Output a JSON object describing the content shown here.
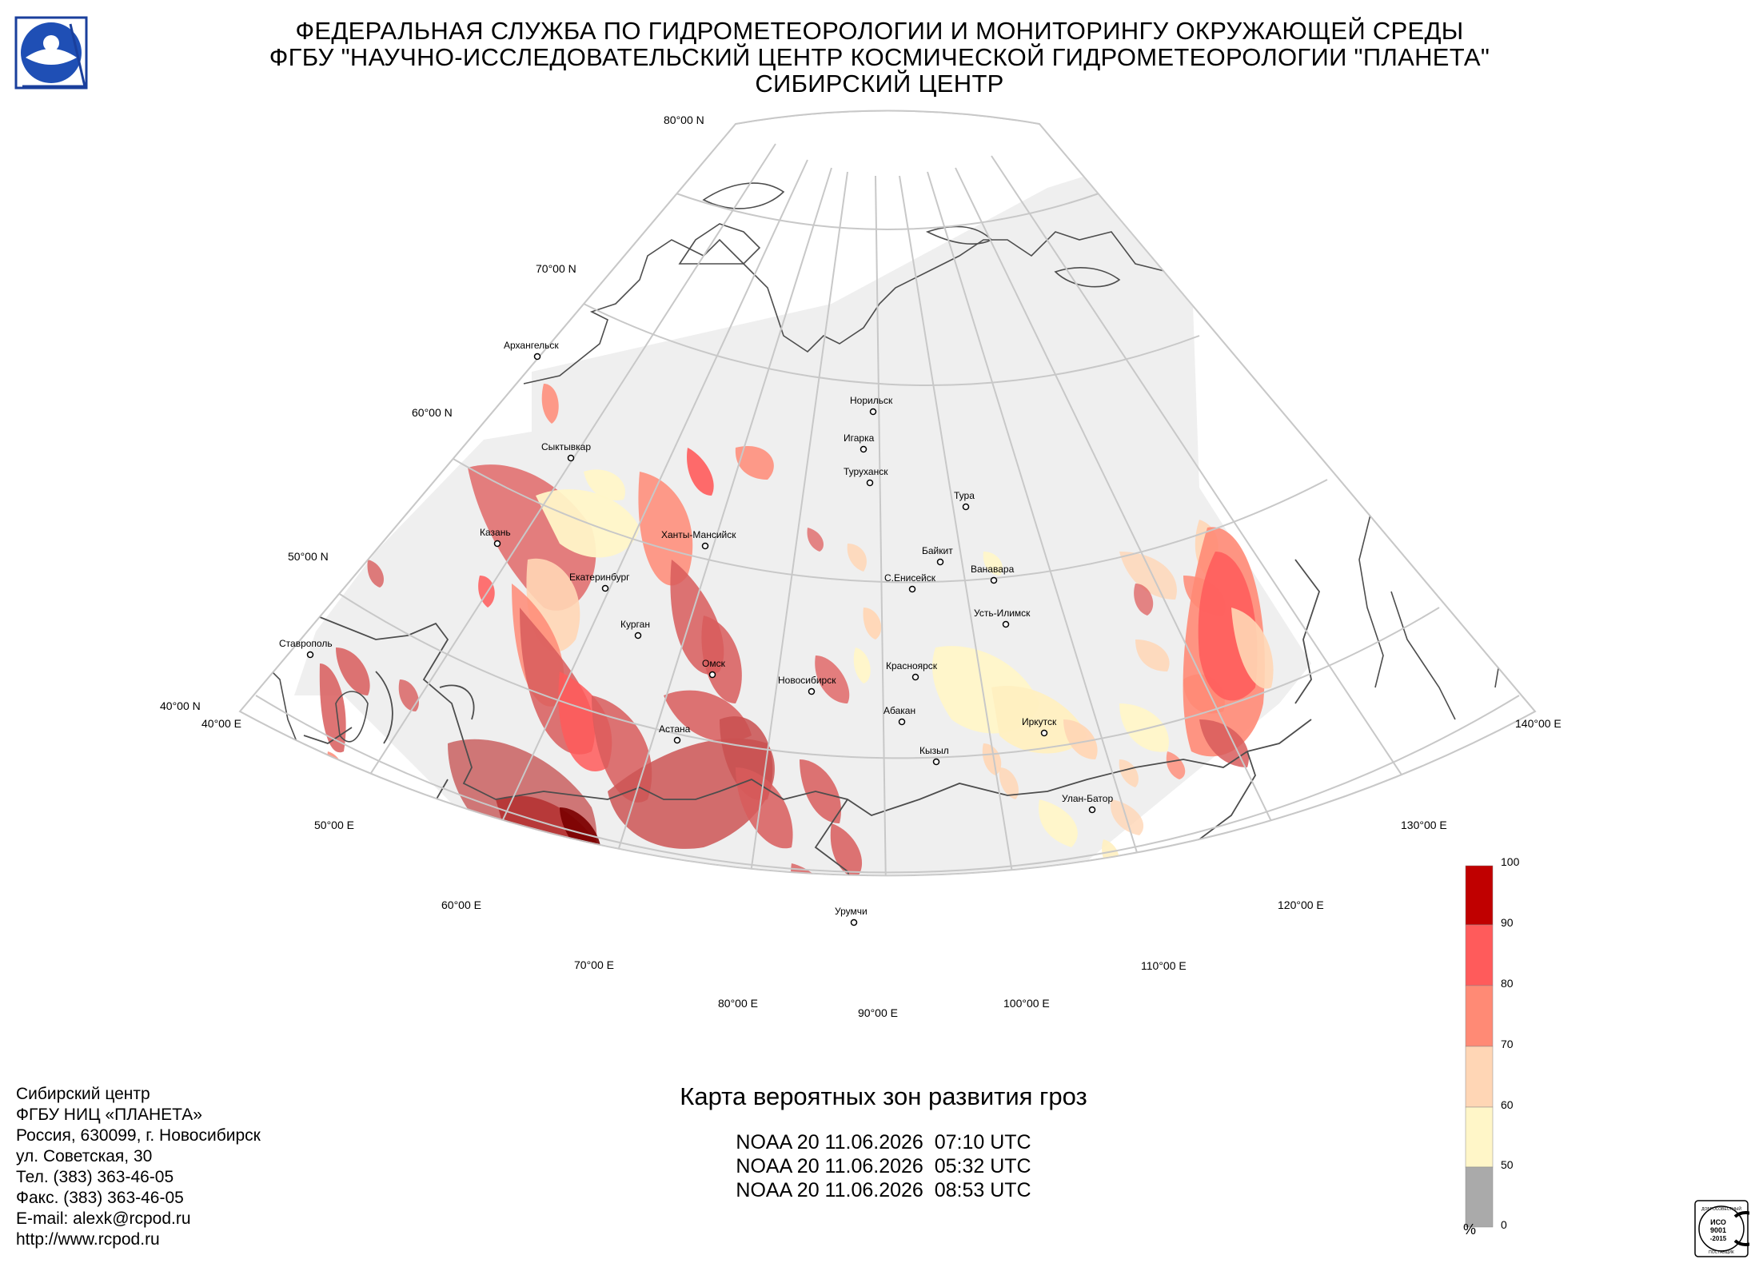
{
  "header": {
    "line1": "ФЕДЕРАЛЬНАЯ СЛУЖБА ПО ГИДРОМЕТЕОРОЛОГИИ И МОНИТОРИНГУ ОКРУЖАЮЩЕЙ СРЕДЫ",
    "line2": "ФГБУ \"НАУЧНО-ИССЛЕДОВАТЕЛЬСКИЙ ЦЕНТР КОСМИЧЕСКОЙ ГИДРОМЕТЕОРОЛОГИИ \"ПЛАНЕТА\"",
    "line3": "СИБИРСКИЙ ЦЕНТР"
  },
  "logo": {
    "icon": "roshydromet-logo"
  },
  "map": {
    "lat_labels": [
      "80°00 N",
      "70°00 N",
      "60°00 N",
      "50°00 N",
      "40°00 N"
    ],
    "lon_labels": [
      "40°00 E",
      "50°00 E",
      "60°00 E",
      "70°00 E",
      "80°00 E",
      "90°00 E",
      "100°00 E",
      "110°00 E",
      "120°00 E",
      "130°00 E",
      "140°00 E"
    ],
    "cities": [
      "Архангельск",
      "Сыктывкар",
      "Казань",
      "Ханты-Мансийск",
      "Екатеринбург",
      "Курган",
      "Омск",
      "Новосибирск",
      "Астана",
      "Ставрополь",
      "Норильск",
      "Игарка",
      "Туруханск",
      "Тура",
      "Байкит",
      "Ванавара",
      "С.Енисейск",
      "Усть-Илимск",
      "Красноярск",
      "Абакан",
      "Иркутск",
      "Кызыл",
      "Улан-Батор",
      "Урумчи"
    ]
  },
  "legend": {
    "ticks": [
      "100",
      "90",
      "80",
      "70",
      "60",
      "50",
      "0"
    ],
    "unit": "%",
    "colors": [
      "#c00000",
      "#ff5b5b",
      "#ff8a75",
      "#ffd6b5",
      "#fff6c8",
      "#aaaaaa"
    ]
  },
  "contact": {
    "lines": [
      "Сибирский центр",
      "ФГБУ НИЦ «ПЛАНЕТА»",
      "Россия, 630099, г. Новосибирск",
      "ул. Советская, 30",
      "Тел. (383) 363-46-05",
      "Факс. (383) 363-46-05",
      "E-mail: alexk@rcpod.ru",
      "http://www.rcpod.ru"
    ]
  },
  "product": {
    "title": "Карта вероятных зон развития гроз",
    "passes": [
      "NOAA 20 11.06.2026  07:10 UTC",
      "NOAA 20 11.06.2026  05:32 UTC",
      "NOAA 20 11.06.2026  08:53 UTC"
    ]
  },
  "iso": {
    "line1": "ИСО",
    "line2": "9001",
    "line3": "-2015",
    "arc_top": "ДОБРОСОВЕСТНЫЙ",
    "arc_bottom": "ПОСТАВЩИК"
  }
}
